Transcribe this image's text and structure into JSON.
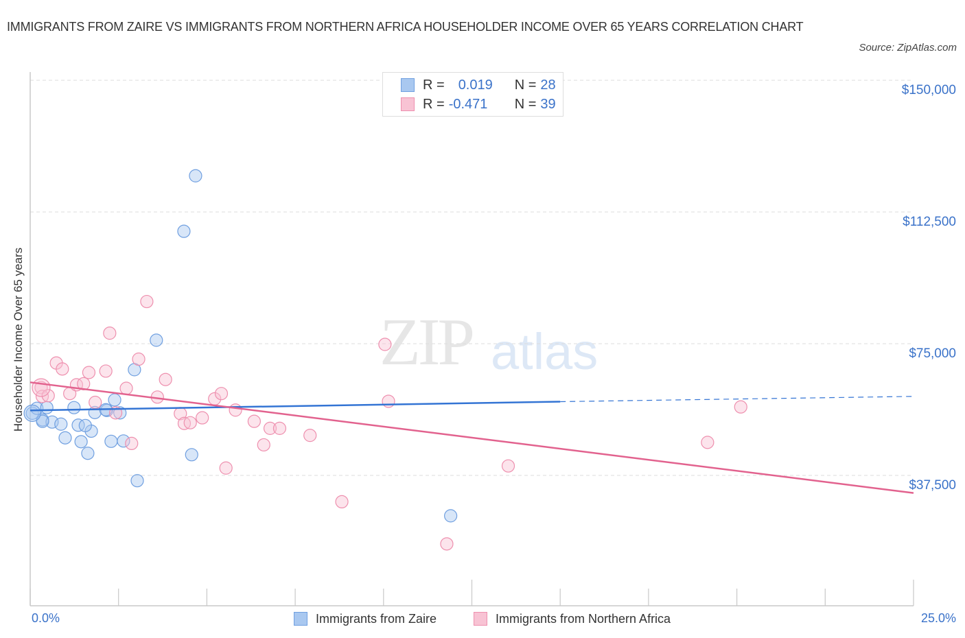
{
  "header": {
    "title": "IMMIGRANTS FROM ZAIRE VS IMMIGRANTS FROM NORTHERN AFRICA HOUSEHOLDER INCOME OVER 65 YEARS CORRELATION CHART",
    "source": "Source: ZipAtlas.com"
  },
  "watermark": {
    "zip": "ZIP",
    "atlas": "atlas"
  },
  "legend": {
    "rows": [
      {
        "r_label": "R =",
        "r_value": "0.019",
        "n_label": "N =",
        "n_value": "28",
        "color": "#a9c8f0",
        "border": "#6f9fe0"
      },
      {
        "r_label": "R =",
        "r_value": "-0.471",
        "n_label": "N =",
        "n_value": "39",
        "color": "#f8c3d4",
        "border": "#ee8fae"
      }
    ]
  },
  "bottom_legend": [
    {
      "label": "Immigrants from Zaire",
      "color": "#a9c8f0",
      "border": "#6f9fe0"
    },
    {
      "label": "Immigrants from Northern Africa",
      "color": "#f8c3d4",
      "border": "#ee8fae"
    }
  ],
  "axes": {
    "x_min_label": "0.0%",
    "x_max_label": "25.0%",
    "y_label": "Householder Income Over 65 years",
    "y_ticks": [
      "$150,000",
      "$112,500",
      "$75,000",
      "$37,500"
    ]
  },
  "colors": {
    "zaire": "#3374d4",
    "northern_africa": "#e2628e",
    "grid": "#dddddd",
    "axis_text": "#3a72c9"
  },
  "chart_data": {
    "type": "scatter",
    "title": "IMMIGRANTS FROM ZAIRE VS IMMIGRANTS FROM NORTHERN AFRICA HOUSEHOLDER INCOME OVER 65 YEARS CORRELATION CHART",
    "xlabel": "",
    "ylabel": "Householder Income Over 65 years",
    "xlim": [
      0,
      25
    ],
    "ylim": [
      0,
      150000
    ],
    "y_ticks": [
      37500,
      75000,
      112500,
      150000
    ],
    "x_tick_labels": [
      "0.0%",
      "25.0%"
    ],
    "grid": true,
    "legend_position": "top-center",
    "series": [
      {
        "name": "Immigrants from Zaire",
        "R": 0.019,
        "N": 28,
        "trend": {
          "x": [
            0,
            15
          ],
          "y": [
            56000,
            58500
          ],
          "dashed_extension": {
            "x": [
              15,
              25
            ],
            "y": [
              58500,
              60000
            ]
          }
        },
        "points": [
          [
            0.06,
            55200
          ],
          [
            0.19,
            56600
          ],
          [
            0.47,
            56800
          ],
          [
            0.35,
            53300
          ],
          [
            0.62,
            52700
          ],
          [
            0.87,
            52100
          ],
          [
            0.99,
            48200
          ],
          [
            1.24,
            56800
          ],
          [
            1.36,
            51800
          ],
          [
            1.44,
            47100
          ],
          [
            1.63,
            43800
          ],
          [
            1.73,
            50100
          ],
          [
            1.83,
            55400
          ],
          [
            2.29,
            47200
          ],
          [
            2.17,
            56000
          ],
          [
            2.39,
            59000
          ],
          [
            2.54,
            55300
          ],
          [
            2.64,
            47300
          ],
          [
            2.95,
            67600
          ],
          [
            3.03,
            36000
          ],
          [
            3.57,
            76000
          ],
          [
            4.35,
            107000
          ],
          [
            4.68,
            122800
          ],
          [
            4.57,
            43400
          ],
          [
            2.14,
            56200
          ],
          [
            1.56,
            51700
          ],
          [
            0.35,
            52900
          ],
          [
            11.9,
            26000
          ]
        ]
      },
      {
        "name": "Immigrants from Northern Africa",
        "R": -0.471,
        "N": 39,
        "trend": {
          "x": [
            0,
            25
          ],
          "y": [
            64000,
            32500
          ]
        },
        "points": [
          [
            0.31,
            62500
          ],
          [
            0.34,
            60000
          ],
          [
            0.51,
            60200
          ],
          [
            0.74,
            69500
          ],
          [
            0.91,
            67800
          ],
          [
            1.12,
            60800
          ],
          [
            1.31,
            63300
          ],
          [
            1.51,
            63600
          ],
          [
            1.66,
            66800
          ],
          [
            1.84,
            58300
          ],
          [
            2.14,
            67200
          ],
          [
            2.25,
            78000
          ],
          [
            2.42,
            55300
          ],
          [
            2.72,
            62300
          ],
          [
            2.87,
            46600
          ],
          [
            3.07,
            70600
          ],
          [
            3.3,
            87000
          ],
          [
            3.6,
            59800
          ],
          [
            3.83,
            64800
          ],
          [
            4.25,
            55100
          ],
          [
            4.36,
            52300
          ],
          [
            4.53,
            52500
          ],
          [
            4.87,
            53900
          ],
          [
            5.22,
            59300
          ],
          [
            5.41,
            60800
          ],
          [
            5.54,
            39600
          ],
          [
            5.81,
            56100
          ],
          [
            6.34,
            52900
          ],
          [
            6.61,
            46200
          ],
          [
            6.79,
            50900
          ],
          [
            7.06,
            50900
          ],
          [
            7.92,
            48900
          ],
          [
            8.82,
            30000
          ],
          [
            10.04,
            74800
          ],
          [
            10.14,
            58600
          ],
          [
            11.79,
            18000
          ],
          [
            13.53,
            40200
          ],
          [
            19.17,
            46900
          ],
          [
            20.11,
            57000
          ]
        ]
      }
    ]
  }
}
